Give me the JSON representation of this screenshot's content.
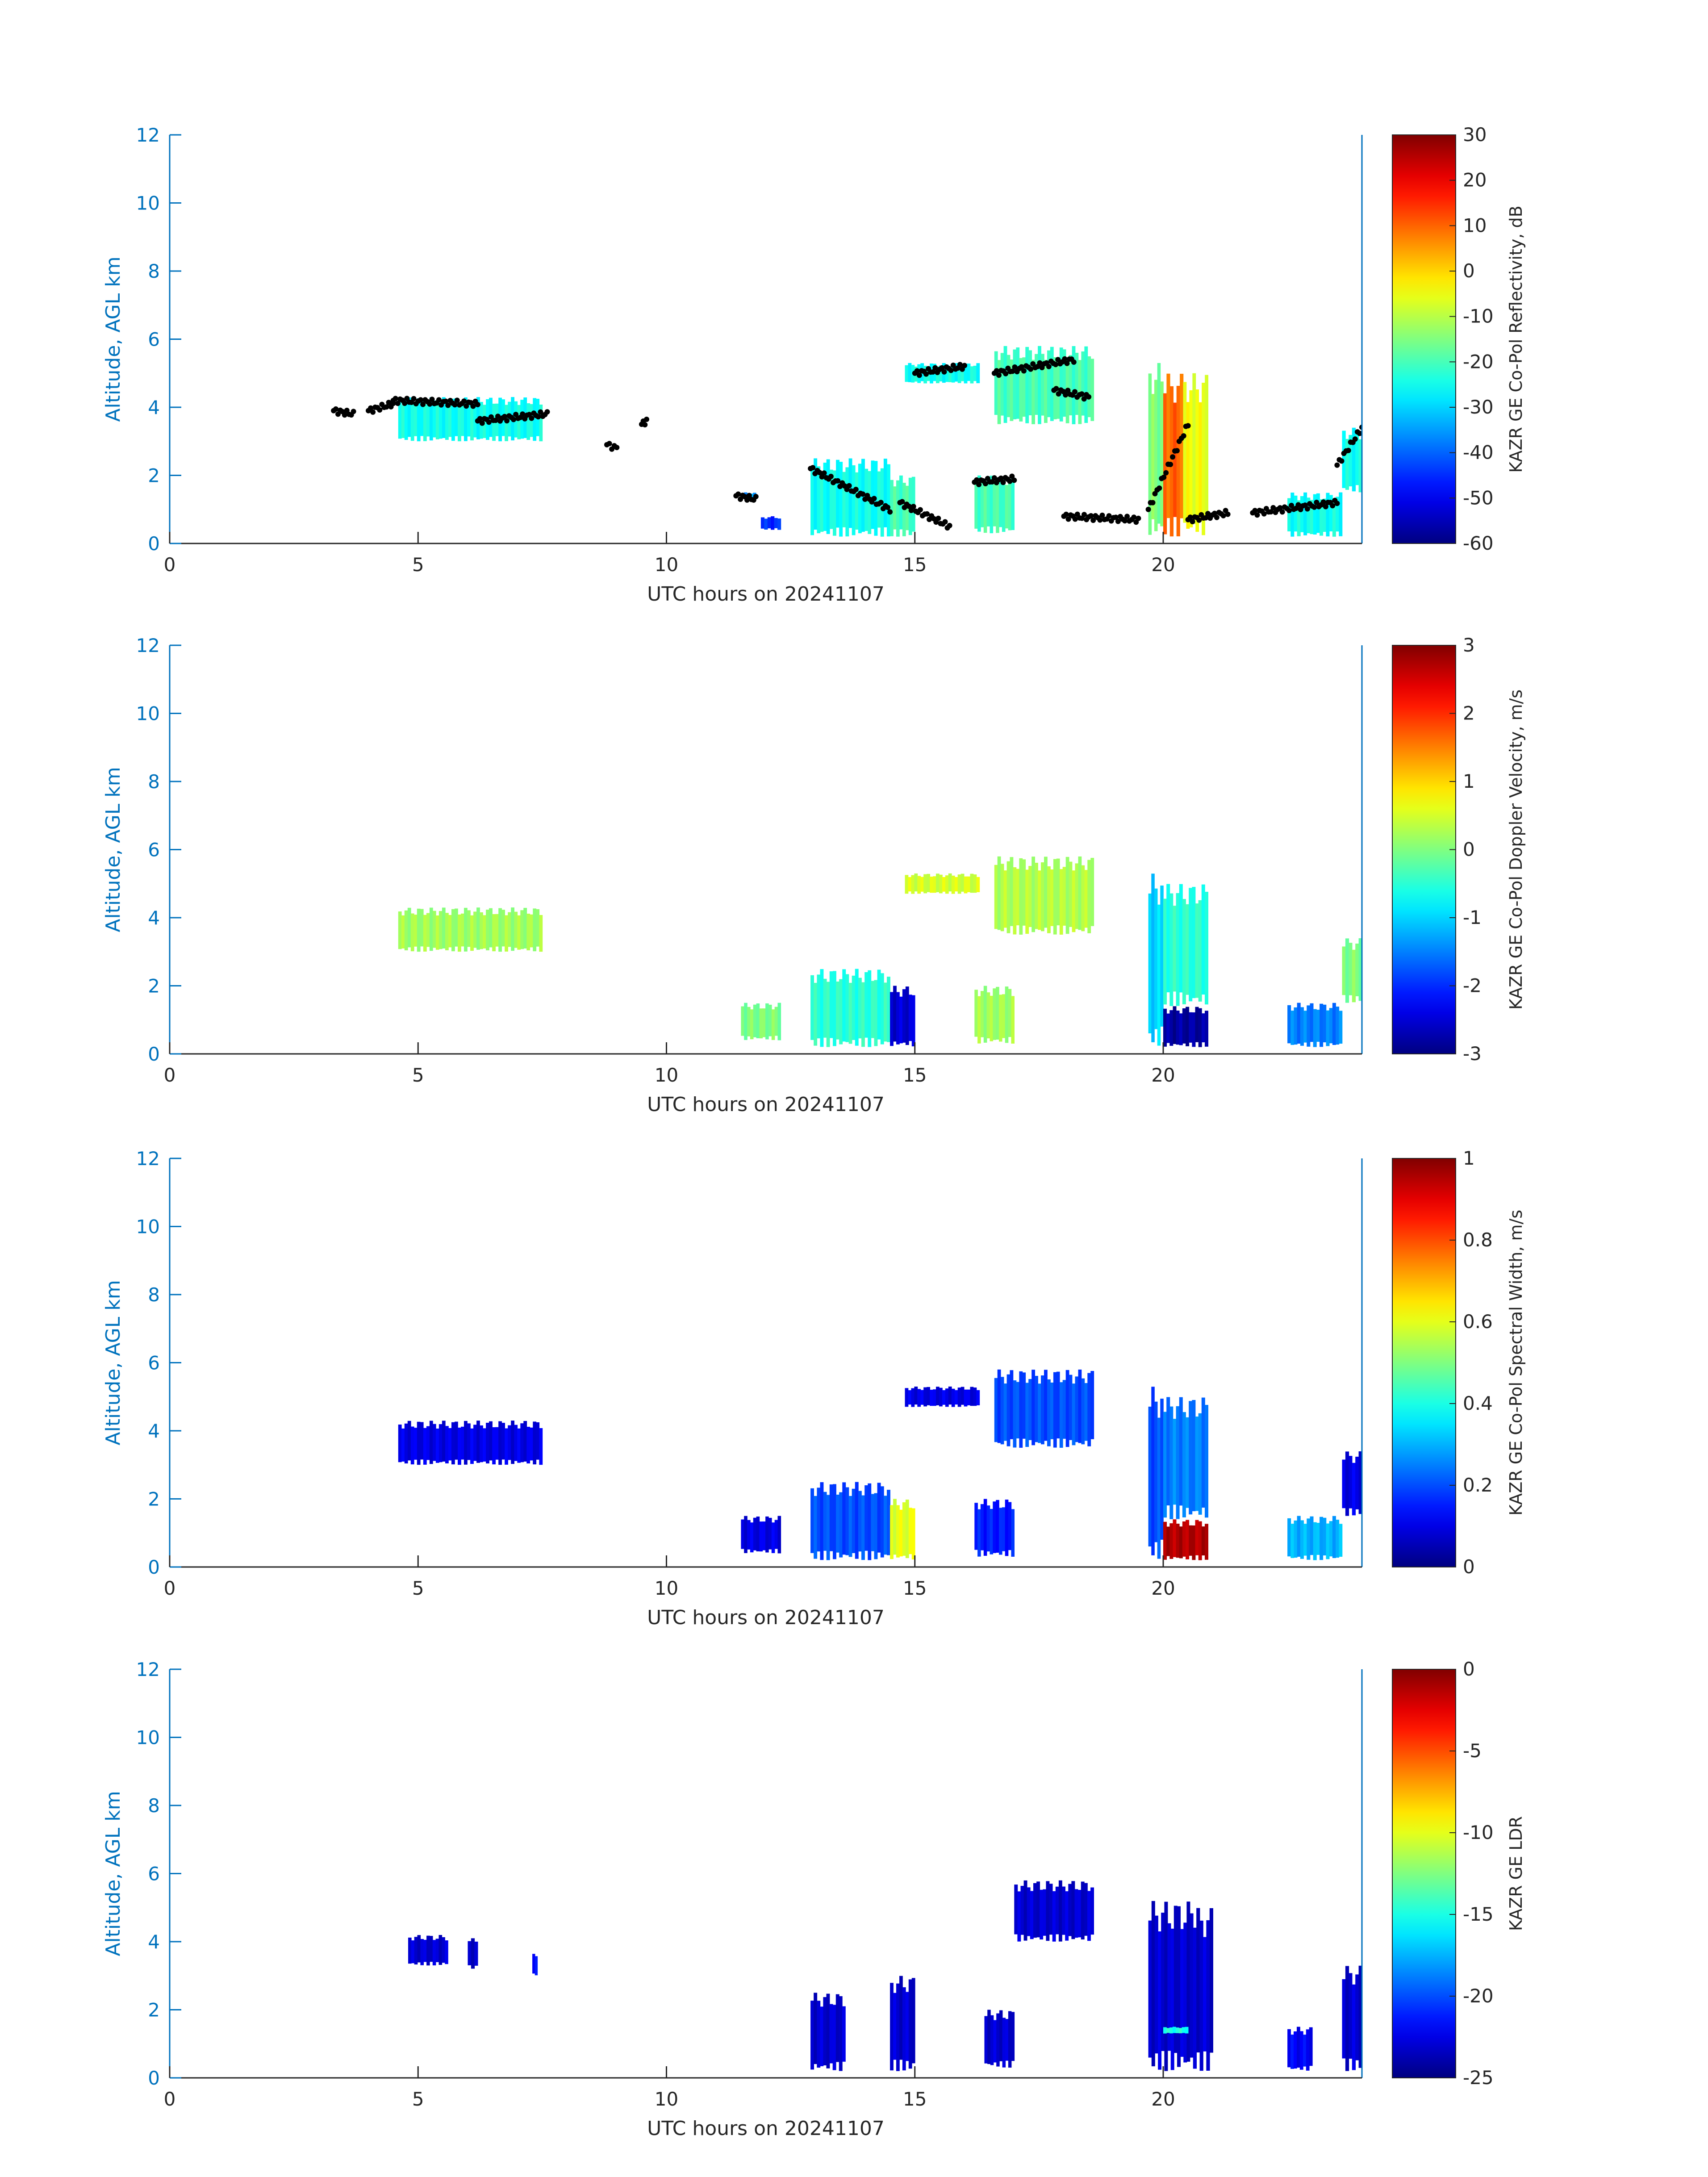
{
  "chart_data": [
    {
      "type": "heatmap",
      "xlabel": "UTC hours on 20241107",
      "ylabel": "Altitude, AGL km",
      "xlim": [
        0,
        24
      ],
      "ylim": [
        0,
        12
      ],
      "x_ticks": [
        0,
        5,
        10,
        15,
        20
      ],
      "y_ticks": [
        0,
        2,
        4,
        6,
        8,
        10,
        12
      ],
      "colormap": "jet",
      "colorbar_label": "KAZR GE Co-Pol Reflectivity, dB",
      "colorbar_range": [
        -60,
        30
      ],
      "colorbar_ticks": [
        30,
        20,
        10,
        0,
        -10,
        -20,
        -30,
        -40,
        -50,
        -60
      ],
      "overlay": "black cloud-base markers",
      "cloud_regions": [
        {
          "x": [
            4.6,
            7.5
          ],
          "y": [
            3.0,
            4.3
          ],
          "value": -25
        },
        {
          "x": [
            11.5,
            11.8
          ],
          "y": [
            1.3,
            1.5
          ],
          "value": -35
        },
        {
          "x": [
            11.9,
            12.3
          ],
          "y": [
            0.4,
            0.8
          ],
          "value": -45
        },
        {
          "x": [
            12.9,
            14.5
          ],
          "y": [
            0.2,
            2.5
          ],
          "value": -25
        },
        {
          "x": [
            14.5,
            15.0
          ],
          "y": [
            0.2,
            2.0
          ],
          "value": -20
        },
        {
          "x": [
            14.8,
            16.3
          ],
          "y": [
            4.7,
            5.3
          ],
          "value": -25
        },
        {
          "x": [
            16.6,
            18.6
          ],
          "y": [
            3.5,
            5.8
          ],
          "value": -20
        },
        {
          "x": [
            16.2,
            17.0
          ],
          "y": [
            0.3,
            2.0
          ],
          "value": -20
        },
        {
          "x": [
            19.7,
            20.0
          ],
          "y": [
            0.2,
            5.3
          ],
          "value": -15
        },
        {
          "x": [
            20.0,
            20.4
          ],
          "y": [
            0.2,
            5.0
          ],
          "value": 10
        },
        {
          "x": [
            20.4,
            20.9
          ],
          "y": [
            0.2,
            5.0
          ],
          "value": -5
        },
        {
          "x": [
            22.5,
            23.6
          ],
          "y": [
            0.2,
            1.5
          ],
          "value": -25
        },
        {
          "x": [
            23.6,
            24.0
          ],
          "y": [
            1.5,
            3.4
          ],
          "value": -25
        }
      ],
      "cloud_base_points": [
        {
          "x": [
            3.3,
            3.7
          ],
          "y": [
            3.9,
            3.8
          ]
        },
        {
          "x": [
            4.0,
            4.5
          ],
          "y": [
            3.9,
            4.1
          ]
        },
        {
          "x": [
            4.5,
            6.2
          ],
          "y": [
            4.2,
            4.1
          ]
        },
        {
          "x": [
            6.2,
            7.6
          ],
          "y": [
            3.6,
            3.8
          ]
        },
        {
          "x": [
            8.8,
            9.0
          ],
          "y": [
            2.9,
            2.8
          ]
        },
        {
          "x": [
            9.5,
            9.6
          ],
          "y": [
            3.5,
            3.6
          ]
        },
        {
          "x": [
            11.4,
            11.8
          ],
          "y": [
            1.4,
            1.3
          ]
        },
        {
          "x": [
            12.9,
            14.5
          ],
          "y": [
            2.2,
            1.0
          ]
        },
        {
          "x": [
            14.7,
            15.7
          ],
          "y": [
            1.2,
            0.5
          ]
        },
        {
          "x": [
            15.0,
            16.0
          ],
          "y": [
            5.0,
            5.2
          ]
        },
        {
          "x": [
            16.6,
            18.2
          ],
          "y": [
            5.0,
            5.4
          ]
        },
        {
          "x": [
            17.8,
            18.5
          ],
          "y": [
            4.5,
            4.3
          ]
        },
        {
          "x": [
            16.2,
            17.0
          ],
          "y": [
            1.8,
            1.9
          ]
        },
        {
          "x": [
            18.0,
            19.5
          ],
          "y": [
            0.8,
            0.7
          ]
        },
        {
          "x": [
            19.7,
            20.5
          ],
          "y": [
            1.0,
            3.5
          ]
        },
        {
          "x": [
            20.5,
            21.3
          ],
          "y": [
            0.7,
            0.9
          ]
        },
        {
          "x": [
            21.8,
            23.5
          ],
          "y": [
            0.9,
            1.2
          ]
        },
        {
          "x": [
            23.5,
            24.0
          ],
          "y": [
            2.3,
            3.4
          ]
        }
      ]
    },
    {
      "type": "heatmap",
      "xlabel": "UTC hours on 20241107",
      "ylabel": "Altitude, AGL km",
      "xlim": [
        0,
        24
      ],
      "ylim": [
        0,
        12
      ],
      "x_ticks": [
        0,
        5,
        10,
        15,
        20
      ],
      "y_ticks": [
        0,
        2,
        4,
        6,
        8,
        10,
        12
      ],
      "colormap": "jet",
      "colorbar_label": "KAZR GE Co-Pol Doppler Velocity, m/s",
      "colorbar_range": [
        -3,
        3
      ],
      "colorbar_ticks": [
        3,
        2,
        1,
        0,
        -1,
        -2,
        -3
      ],
      "cloud_regions": [
        {
          "x": [
            4.6,
            7.5
          ],
          "y": [
            3.0,
            4.3
          ],
          "value": 0.2
        },
        {
          "x": [
            11.5,
            12.3
          ],
          "y": [
            0.4,
            1.5
          ],
          "value": 0.0
        },
        {
          "x": [
            12.9,
            14.5
          ],
          "y": [
            0.2,
            2.5
          ],
          "value": -0.5
        },
        {
          "x": [
            14.5,
            15.0
          ],
          "y": [
            0.2,
            2.0
          ],
          "value": -2.5
        },
        {
          "x": [
            14.8,
            16.3
          ],
          "y": [
            4.7,
            5.3
          ],
          "value": 0.5
        },
        {
          "x": [
            16.6,
            18.6
          ],
          "y": [
            3.5,
            5.8
          ],
          "value": 0.3
        },
        {
          "x": [
            16.2,
            17.0
          ],
          "y": [
            0.3,
            2.0
          ],
          "value": 0.2
        },
        {
          "x": [
            19.7,
            20.0
          ],
          "y": [
            0.2,
            5.3
          ],
          "value": -1.0
        },
        {
          "x": [
            20.0,
            20.9
          ],
          "y": [
            0.2,
            1.4
          ],
          "value": -2.8
        },
        {
          "x": [
            20.0,
            20.9
          ],
          "y": [
            1.4,
            5.0
          ],
          "value": -0.5
        },
        {
          "x": [
            22.5,
            23.6
          ],
          "y": [
            0.2,
            1.5
          ],
          "value": -1.5
        },
        {
          "x": [
            23.6,
            24.0
          ],
          "y": [
            1.5,
            3.4
          ],
          "value": 0.0
        }
      ]
    },
    {
      "type": "heatmap",
      "xlabel": "UTC hours on 20241107",
      "ylabel": "Altitude, AGL km",
      "xlim": [
        0,
        24
      ],
      "ylim": [
        0,
        12
      ],
      "x_ticks": [
        0,
        5,
        10,
        15,
        20
      ],
      "y_ticks": [
        0,
        2,
        4,
        6,
        8,
        10,
        12
      ],
      "colormap": "jet",
      "colorbar_label": "KAZR GE Co-Pol Spectral Width, m/s",
      "colorbar_range": [
        0,
        1
      ],
      "colorbar_ticks": [
        1,
        0.8,
        0.6,
        0.4,
        0.2,
        0
      ],
      "cloud_regions": [
        {
          "x": [
            4.6,
            7.5
          ],
          "y": [
            3.0,
            4.3
          ],
          "value": 0.1
        },
        {
          "x": [
            11.5,
            12.3
          ],
          "y": [
            0.4,
            1.5
          ],
          "value": 0.1
        },
        {
          "x": [
            12.9,
            14.5
          ],
          "y": [
            0.2,
            2.5
          ],
          "value": 0.2
        },
        {
          "x": [
            14.5,
            15.0
          ],
          "y": [
            0.2,
            2.0
          ],
          "value": 0.6
        },
        {
          "x": [
            14.8,
            16.3
          ],
          "y": [
            4.7,
            5.3
          ],
          "value": 0.1
        },
        {
          "x": [
            16.6,
            18.6
          ],
          "y": [
            3.5,
            5.8
          ],
          "value": 0.2
        },
        {
          "x": [
            16.2,
            17.0
          ],
          "y": [
            0.3,
            2.0
          ],
          "value": 0.15
        },
        {
          "x": [
            19.7,
            20.0
          ],
          "y": [
            0.2,
            5.3
          ],
          "value": 0.2
        },
        {
          "x": [
            20.0,
            20.9
          ],
          "y": [
            0.2,
            1.4
          ],
          "value": 0.95
        },
        {
          "x": [
            20.0,
            20.9
          ],
          "y": [
            1.4,
            5.0
          ],
          "value": 0.25
        },
        {
          "x": [
            22.5,
            23.6
          ],
          "y": [
            0.2,
            1.5
          ],
          "value": 0.3
        },
        {
          "x": [
            23.6,
            24.0
          ],
          "y": [
            1.5,
            3.4
          ],
          "value": 0.1
        }
      ]
    },
    {
      "type": "heatmap",
      "xlabel": "UTC hours on 20241107",
      "ylabel": "Altitude, AGL km",
      "xlim": [
        0,
        24
      ],
      "ylim": [
        0,
        12
      ],
      "x_ticks": [
        0,
        5,
        10,
        15,
        20
      ],
      "y_ticks": [
        0,
        2,
        4,
        6,
        8,
        10,
        12
      ],
      "colormap": "jet",
      "colorbar_label": "KAZR GE LDR",
      "colorbar_range": [
        -25,
        0
      ],
      "colorbar_ticks": [
        0,
        -5,
        -10,
        -15,
        -20,
        -25
      ],
      "cloud_regions": [
        {
          "x": [
            4.8,
            5.6
          ],
          "y": [
            3.3,
            4.2
          ],
          "value": -23
        },
        {
          "x": [
            6.0,
            6.2
          ],
          "y": [
            3.2,
            4.1
          ],
          "value": -23
        },
        {
          "x": [
            7.3,
            7.4
          ],
          "y": [
            3.0,
            3.7
          ],
          "value": -22
        },
        {
          "x": [
            12.9,
            13.6
          ],
          "y": [
            0.2,
            2.5
          ],
          "value": -23
        },
        {
          "x": [
            14.5,
            15.0
          ],
          "y": [
            0.2,
            3.0
          ],
          "value": -23
        },
        {
          "x": [
            16.4,
            17.0
          ],
          "y": [
            0.3,
            2.0
          ],
          "value": -23
        },
        {
          "x": [
            17.0,
            18.6
          ],
          "y": [
            4.0,
            5.8
          ],
          "value": -23
        },
        {
          "x": [
            19.7,
            20.6
          ],
          "y": [
            0.2,
            5.2
          ],
          "value": -23
        },
        {
          "x": [
            20.0,
            20.5
          ],
          "y": [
            1.3,
            1.5
          ],
          "value": -15
        },
        {
          "x": [
            20.6,
            21.0
          ],
          "y": [
            0.2,
            5.0
          ],
          "value": -23
        },
        {
          "x": [
            22.5,
            23.0
          ],
          "y": [
            0.2,
            1.5
          ],
          "value": -22
        },
        {
          "x": [
            23.6,
            24.0
          ],
          "y": [
            0.2,
            3.3
          ],
          "value": -23
        }
      ]
    }
  ]
}
